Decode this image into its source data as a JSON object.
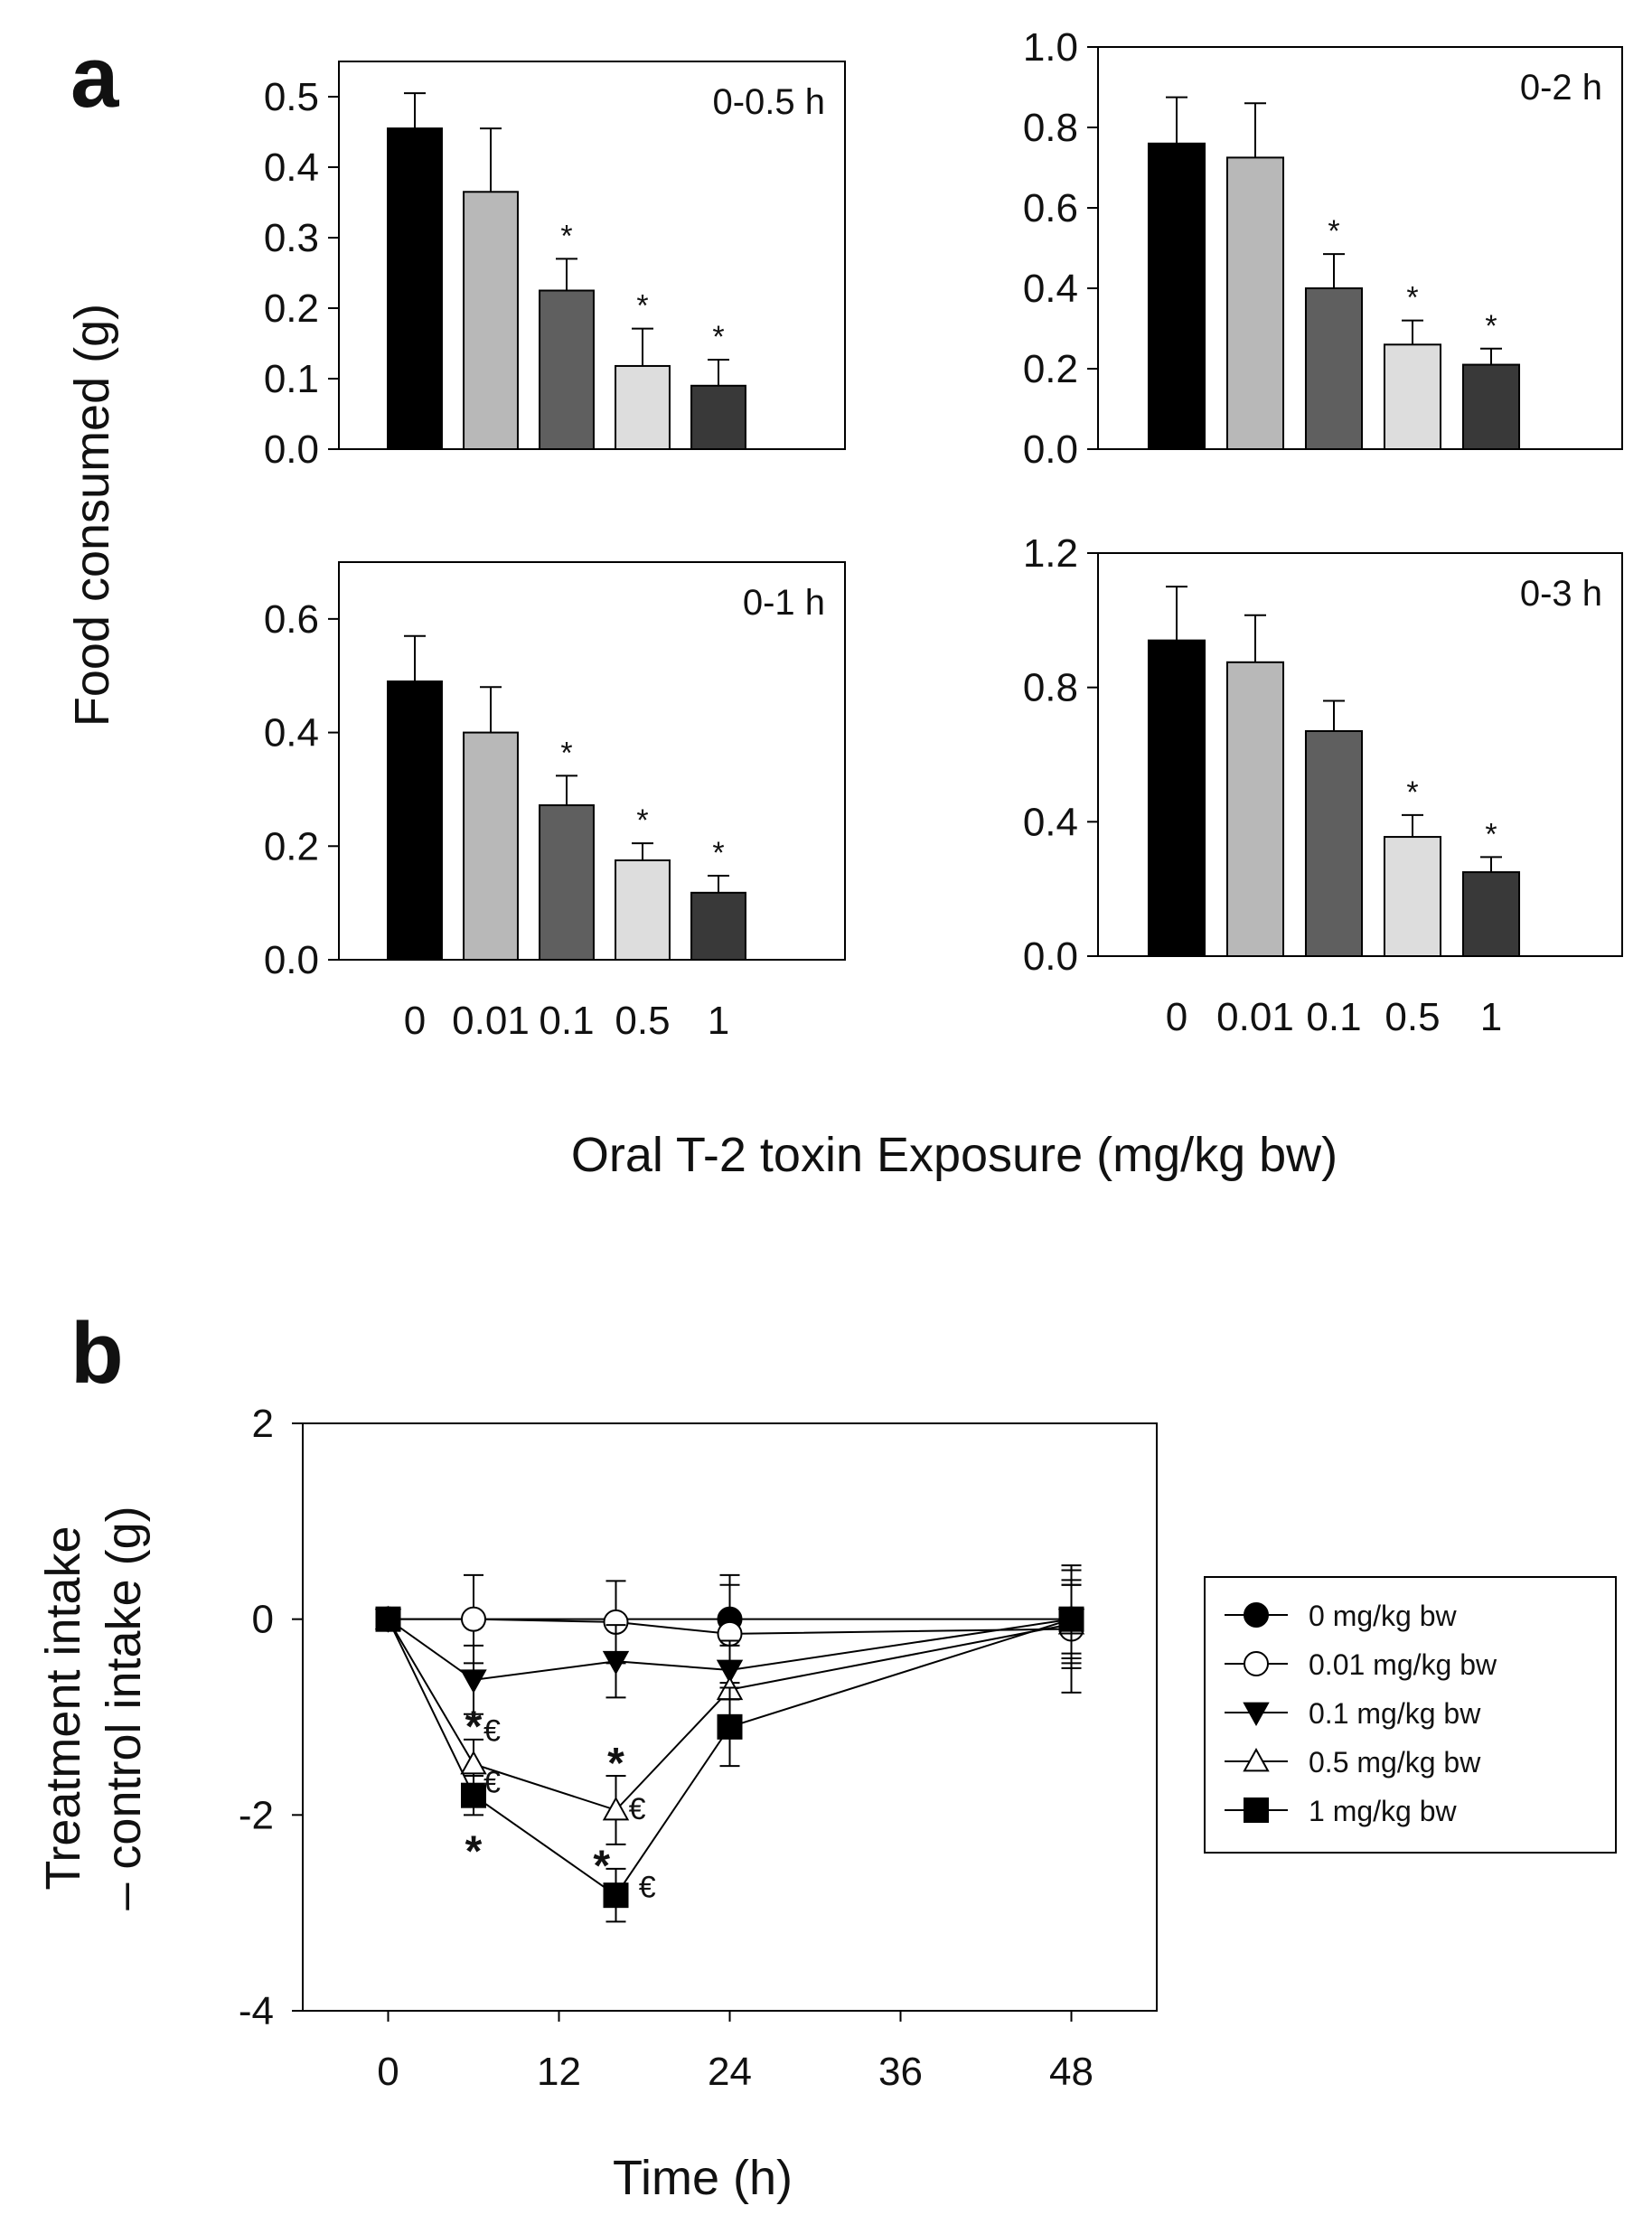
{
  "figure": {
    "panel_a_letter": "a",
    "panel_b_letter": "b",
    "panel_a_ylabel": "Food consumed (g)",
    "panel_a_xlabel": "Oral T-2 toxin Exposure (mg/kg bw)"
  },
  "colors": {
    "bar_fills": [
      "#000000",
      "#b8b8b8",
      "#5f5f5f",
      "#dddddd",
      "#393939"
    ],
    "axis": "#000000"
  },
  "chart_data": [
    {
      "type": "bar",
      "title": "0-0.5 h",
      "categories": [
        "0",
        "0.01",
        "0.1",
        "0.5",
        "1"
      ],
      "values": [
        0.455,
        0.365,
        0.225,
        0.118,
        0.09
      ],
      "errors": [
        0.05,
        0.09,
        0.045,
        0.053,
        0.037
      ],
      "significance": [
        "",
        "",
        "*",
        "*",
        "*"
      ],
      "ylim": [
        0,
        0.55
      ],
      "yticks": [
        "0.0",
        "0.1",
        "0.2",
        "0.3",
        "0.4",
        "0.5"
      ],
      "ytick_values": [
        0,
        0.1,
        0.2,
        0.3,
        0.4,
        0.5
      ],
      "show_xticks": false
    },
    {
      "type": "bar",
      "title": "0-2 h",
      "categories": [
        "0",
        "0.01",
        "0.1",
        "0.5",
        "1"
      ],
      "values": [
        0.76,
        0.725,
        0.4,
        0.26,
        0.21
      ],
      "errors": [
        0.115,
        0.135,
        0.085,
        0.06,
        0.04
      ],
      "significance": [
        "",
        "",
        "*",
        "*",
        "*"
      ],
      "ylim": [
        0,
        1.0
      ],
      "yticks": [
        "0.0",
        "0.2",
        "0.4",
        "0.6",
        "0.8",
        "1.0"
      ],
      "ytick_values": [
        0,
        0.2,
        0.4,
        0.6,
        0.8,
        1.0
      ],
      "show_xticks": false
    },
    {
      "type": "bar",
      "title": "0-1 h",
      "categories": [
        "0",
        "0.01",
        "0.1",
        "0.5",
        "1"
      ],
      "values": [
        0.49,
        0.4,
        0.272,
        0.175,
        0.118
      ],
      "errors": [
        0.08,
        0.08,
        0.052,
        0.03,
        0.03
      ],
      "significance": [
        "",
        "",
        "*",
        "*",
        "*"
      ],
      "ylim": [
        0,
        0.7
      ],
      "yticks": [
        "0.0",
        "0.2",
        "0.4",
        "0.6"
      ],
      "ytick_values": [
        0,
        0.2,
        0.4,
        0.6
      ],
      "show_xticks": true
    },
    {
      "type": "bar",
      "title": "0-3 h",
      "categories": [
        "0",
        "0.01",
        "0.1",
        "0.5",
        "1"
      ],
      "values": [
        0.94,
        0.875,
        0.67,
        0.355,
        0.25
      ],
      "errors": [
        0.16,
        0.14,
        0.09,
        0.065,
        0.045
      ],
      "significance": [
        "",
        "",
        "",
        "*",
        "*"
      ],
      "ylim": [
        0,
        1.2
      ],
      "yticks": [
        "0.0",
        "0.4",
        "0.8",
        "1.2"
      ],
      "ytick_values": [
        0,
        0.4,
        0.8,
        1.2
      ],
      "show_xticks": true
    },
    {
      "type": "line",
      "xlabel": "Time (h)",
      "ylabel_line1": "Treatment intake",
      "ylabel_line2": "– control intake (g)",
      "xlim": [
        -6,
        54
      ],
      "ylim": [
        -4,
        2
      ],
      "xticks": [
        "0",
        "12",
        "24",
        "36",
        "48"
      ],
      "xtick_values": [
        0,
        12,
        24,
        36,
        48
      ],
      "yticks": [
        "-4",
        "-2",
        "0",
        "2"
      ],
      "ytick_values": [
        -4,
        -2,
        0,
        2
      ],
      "x": [
        0,
        6,
        16,
        24,
        48
      ],
      "series": [
        {
          "name": "0 mg/kg bw",
          "marker": "filled-circle",
          "values": [
            0,
            null,
            null,
            0,
            0
          ],
          "errors": [
            0,
            null,
            null,
            0.45,
            0.5
          ],
          "x_override": [
            0,
            null,
            null,
            24,
            48
          ]
        },
        {
          "name": "0.01 mg/kg bw",
          "marker": "open-circle",
          "values": [
            0,
            0,
            -0.03,
            -0.15,
            -0.1
          ],
          "errors": [
            0,
            0.45,
            0.42,
            0.5,
            0.65
          ]
        },
        {
          "name": "0.1 mg/kg bw",
          "marker": "filled-triangle-down",
          "values": [
            0,
            -0.62,
            -0.43,
            -0.52,
            0
          ],
          "errors": [
            0,
            0.35,
            0.37,
            0.3,
            0.35
          ]
        },
        {
          "name": "0.5 mg/kg bw",
          "marker": "open-triangle-up",
          "values": [
            0,
            -1.48,
            -1.95,
            -0.72,
            -0.05
          ],
          "errors": [
            0,
            0.25,
            0.35,
            0.45,
            0.4
          ]
        },
        {
          "name": "1 mg/kg bw",
          "marker": "filled-square",
          "values": [
            0,
            -1.8,
            -2.82,
            -1.1,
            0
          ],
          "errors": [
            0,
            0.2,
            0.27,
            0.4,
            0.4
          ]
        }
      ],
      "annotations": [
        {
          "text": "*",
          "x": 6,
          "y": -1.08,
          "style": "big"
        },
        {
          "text": "€",
          "x": 7.3,
          "y": -1.15,
          "style": "small"
        },
        {
          "text": "€",
          "x": 7.3,
          "y": -1.68,
          "style": "small"
        },
        {
          "text": "*",
          "x": 6,
          "y": -2.35,
          "style": "big"
        },
        {
          "text": "*",
          "x": 16,
          "y": -1.45,
          "style": "big"
        },
        {
          "text": "€",
          "x": 17.5,
          "y": -1.95,
          "style": "small"
        },
        {
          "text": "*",
          "x": 15,
          "y": -2.5,
          "style": "big"
        },
        {
          "text": "€",
          "x": 18.2,
          "y": -2.75,
          "style": "small"
        }
      ],
      "legend_position": "right"
    }
  ]
}
